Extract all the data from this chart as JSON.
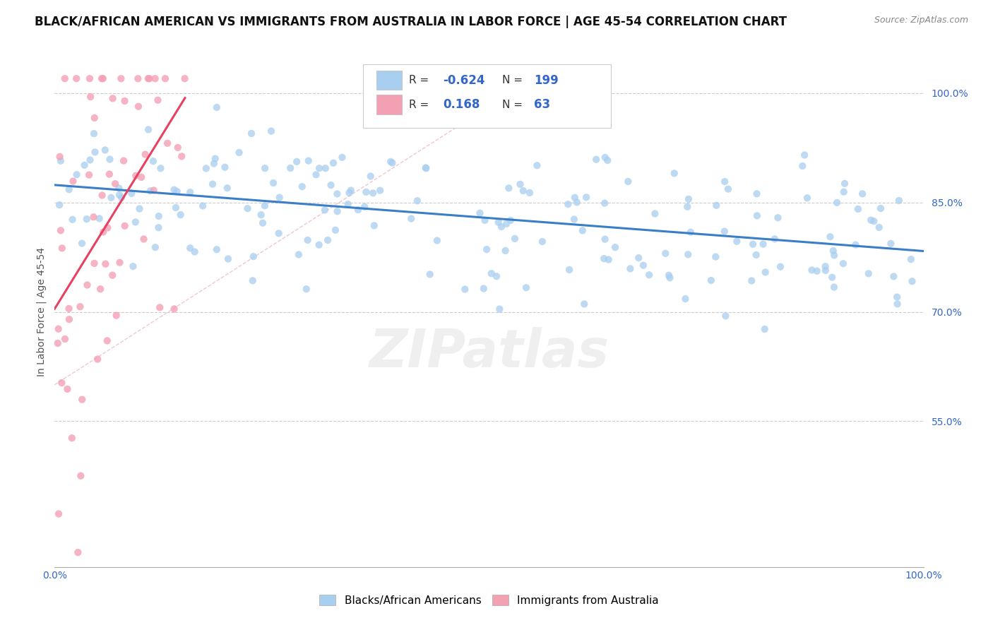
{
  "title": "BLACK/AFRICAN AMERICAN VS IMMIGRANTS FROM AUSTRALIA IN LABOR FORCE | AGE 45-54 CORRELATION CHART",
  "source": "Source: ZipAtlas.com",
  "ylabel": "In Labor Force | Age 45-54",
  "xlim": [
    0.0,
    1.0
  ],
  "ylim": [
    0.35,
    1.05
  ],
  "x_ticks": [
    0.0,
    0.1,
    0.2,
    0.3,
    0.4,
    0.5,
    0.6,
    0.7,
    0.8,
    0.9,
    1.0
  ],
  "x_tick_labels": [
    "0.0%",
    "",
    "",
    "",
    "",
    "",
    "",
    "",
    "",
    "",
    "100.0%"
  ],
  "y_ticks": [
    0.55,
    0.7,
    0.85,
    1.0
  ],
  "y_tick_labels": [
    "55.0%",
    "70.0%",
    "85.0%",
    "100.0%"
  ],
  "blue_R": -0.624,
  "blue_N": 199,
  "pink_R": 0.168,
  "pink_N": 63,
  "blue_color": "#A8CEF0",
  "pink_color": "#F4A0B4",
  "blue_line_color": "#3A7EC8",
  "pink_line_color": "#E84060",
  "diagonal_color": "#F0C0CC",
  "watermark": "ZIPatlas",
  "background_color": "#ffffff",
  "legend_label_blue": "Blacks/African Americans",
  "legend_label_pink": "Immigrants from Australia",
  "title_fontsize": 12,
  "axis_label_fontsize": 10,
  "tick_fontsize": 10
}
